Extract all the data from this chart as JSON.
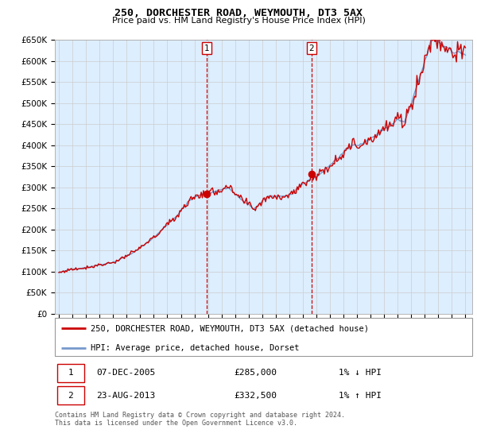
{
  "title": "250, DORCHESTER ROAD, WEYMOUTH, DT3 5AX",
  "subtitle": "Price paid vs. HM Land Registry's House Price Index (HPI)",
  "legend_line1": "250, DORCHESTER ROAD, WEYMOUTH, DT3 5AX (detached house)",
  "legend_line2": "HPI: Average price, detached house, Dorset",
  "sale1_label": "1",
  "sale1_date": "07-DEC-2005",
  "sale1_price": "£285,000",
  "sale1_hpi": "1% ↓ HPI",
  "sale2_label": "2",
  "sale2_date": "23-AUG-2013",
  "sale2_price": "£332,500",
  "sale2_hpi": "1% ↑ HPI",
  "footer": "Contains HM Land Registry data © Crown copyright and database right 2024.\nThis data is licensed under the Open Government Licence v3.0.",
  "background_color": "#ffffff",
  "plot_bg_color": "#ffffff",
  "highlight_color": "#ddeeff",
  "grid_color": "#cccccc",
  "red_line_color": "#cc0000",
  "blue_line_color": "#7799cc",
  "sale1_x": 2005.92,
  "sale1_y": 285000,
  "sale2_x": 2013.64,
  "sale2_y": 332500,
  "ylim": [
    0,
    650000
  ],
  "xlim_start": 1994.7,
  "xlim_end": 2025.5,
  "yticks": [
    0,
    50000,
    100000,
    150000,
    200000,
    250000,
    300000,
    350000,
    400000,
    450000,
    500000,
    550000,
    600000,
    650000
  ],
  "xtick_years": [
    1995,
    1996,
    1997,
    1998,
    1999,
    2000,
    2001,
    2002,
    2003,
    2004,
    2005,
    2006,
    2007,
    2008,
    2009,
    2010,
    2011,
    2012,
    2013,
    2014,
    2015,
    2016,
    2017,
    2018,
    2019,
    2020,
    2021,
    2022,
    2023,
    2024,
    2025
  ]
}
